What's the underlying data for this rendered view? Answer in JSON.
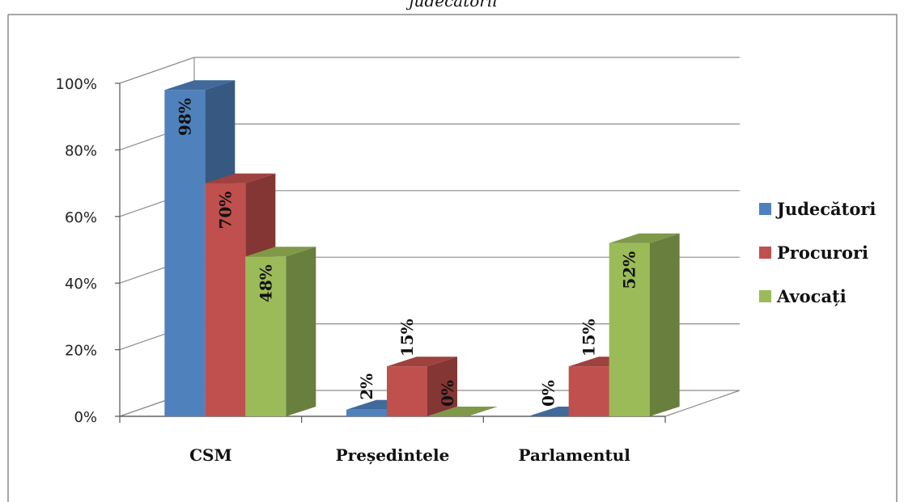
{
  "chart_data": {
    "type": "bar",
    "title": "judecătorii",
    "categories": [
      "CSM",
      "Președintele",
      "Parlamentul"
    ],
    "series": [
      {
        "name": "Judecători",
        "values": [
          98,
          2,
          0
        ],
        "labels": [
          "98%",
          "2%",
          "0%"
        ],
        "color": "#4F81BD"
      },
      {
        "name": "Procurori",
        "values": [
          70,
          15,
          15
        ],
        "labels": [
          "70%",
          "15%",
          "15%"
        ],
        "color": "#C0504D"
      },
      {
        "name": "Avocați",
        "values": [
          48,
          0,
          52
        ],
        "labels": [
          "48%",
          "0%",
          "52%"
        ],
        "color": "#9BBB59"
      }
    ],
    "y_ticks": [
      "0%",
      "20%",
      "40%",
      "60%",
      "80%",
      "100%"
    ],
    "ylim": [
      0,
      100
    ],
    "grid": true,
    "legend": "right",
    "three_d": true
  }
}
